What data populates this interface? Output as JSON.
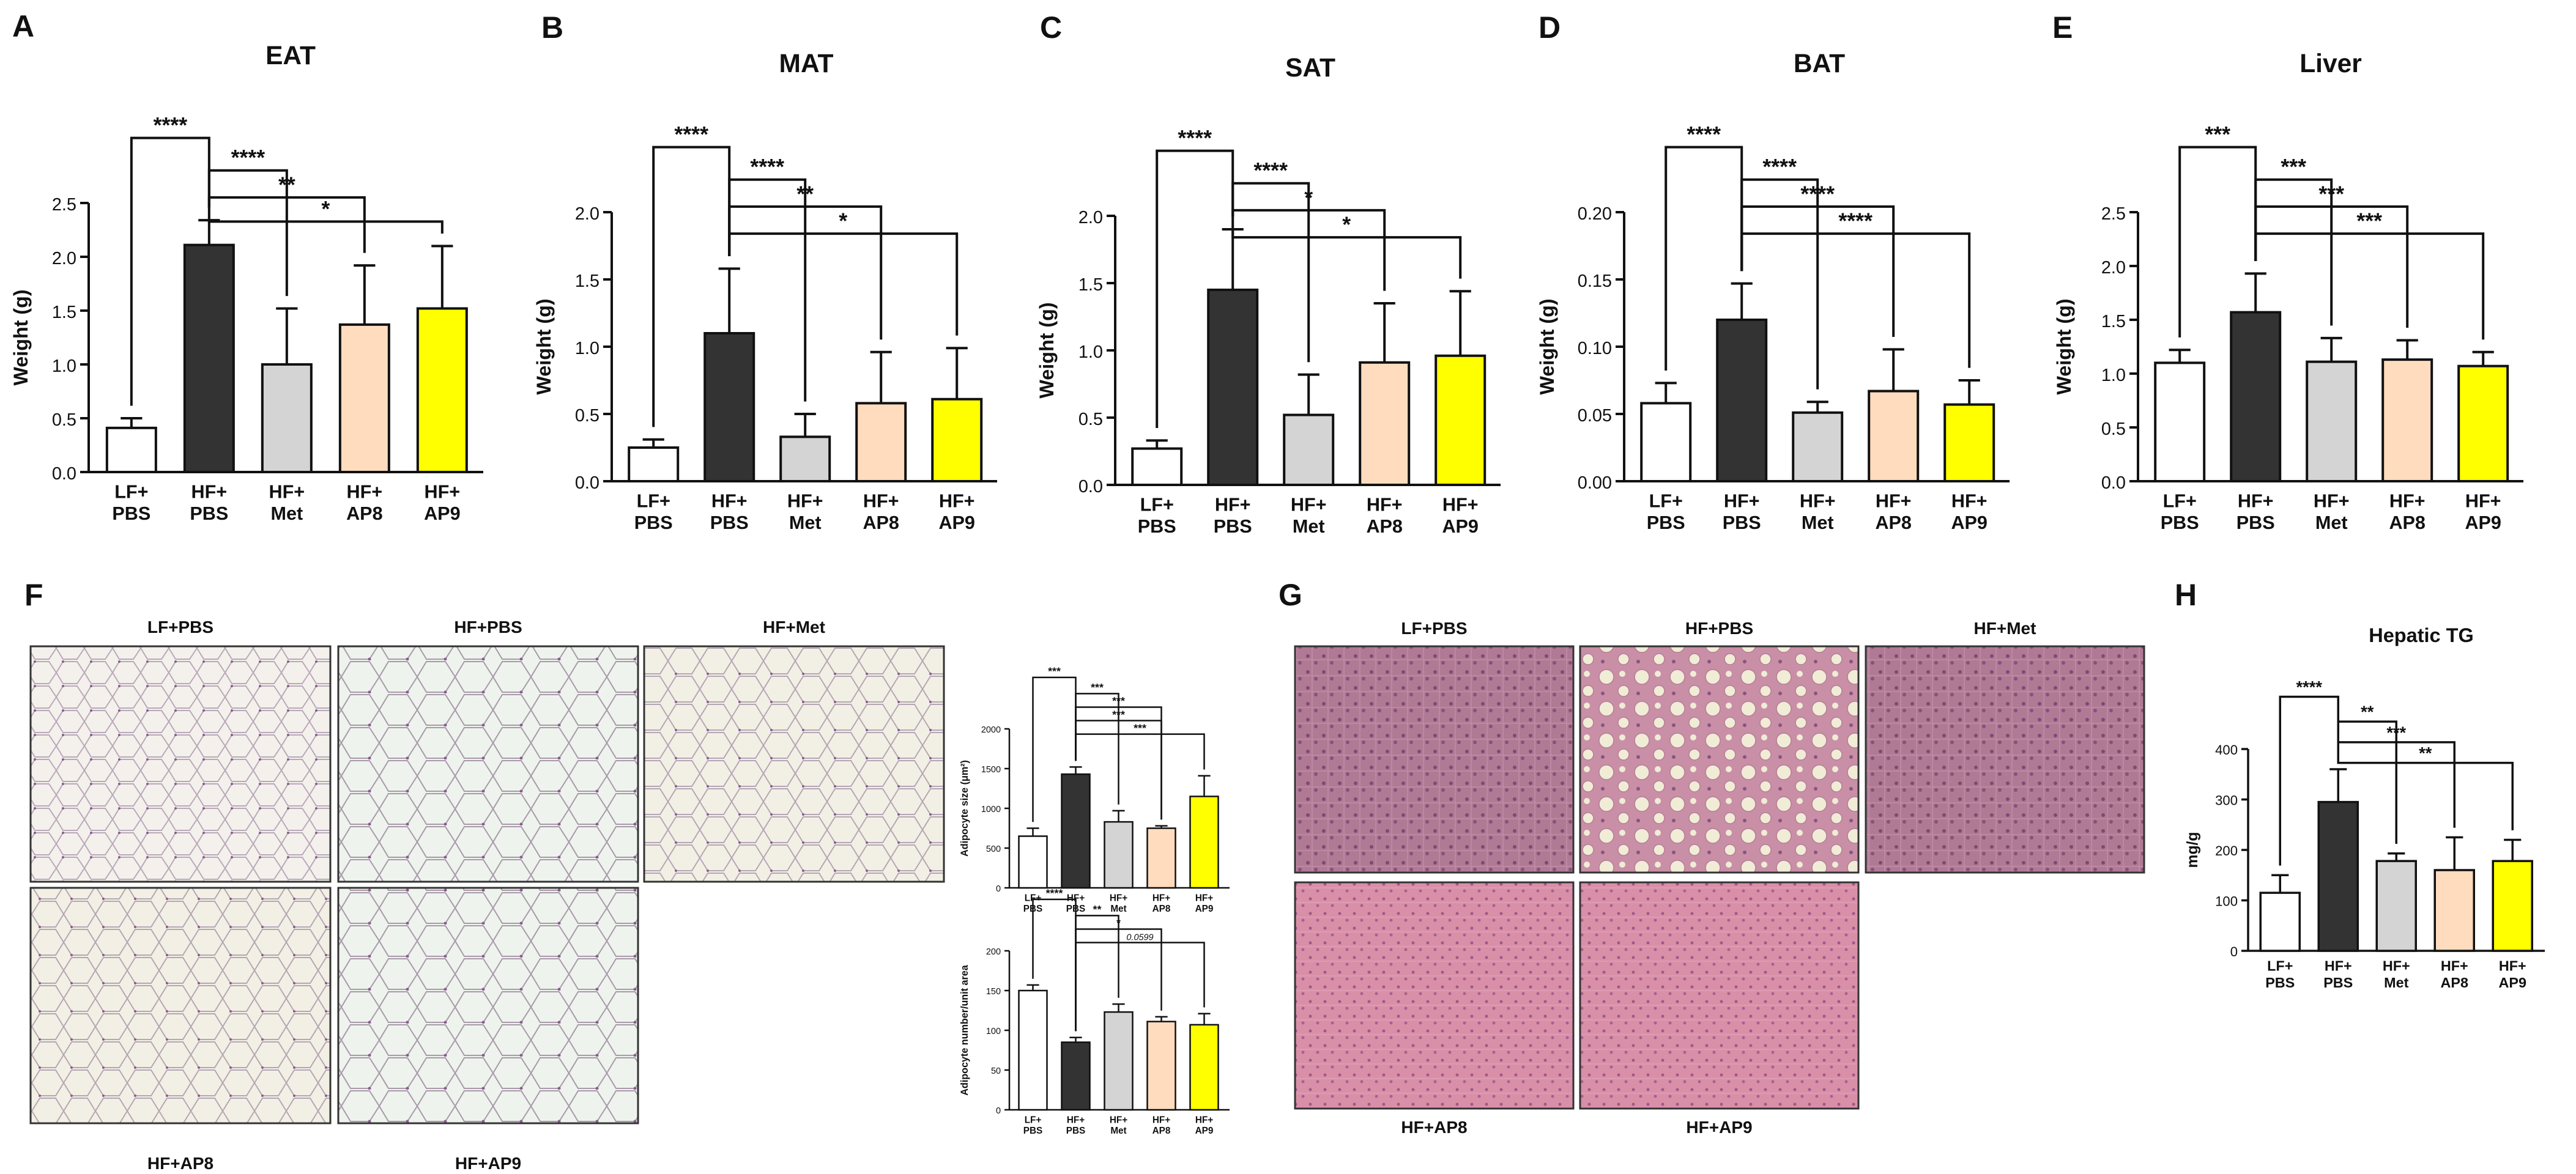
{
  "colors": {
    "lf_pbs": "#ffffff",
    "hf_pbs": "#333333",
    "hf_met": "#d4d4d4",
    "hf_ap8": "#ffdcbe",
    "hf_ap9": "#ffff00",
    "axis": "#111111"
  },
  "groups": [
    "LF+ PBS",
    "HF+ PBS",
    "HF+ Met",
    "HF+ AP8",
    "HF+ AP9"
  ],
  "chart_data": [
    {
      "panel": "A",
      "type": "bar",
      "title": "EAT",
      "ylabel": "Weight (g)",
      "ylim": [
        0,
        2.5
      ],
      "yticks": [
        "0.0",
        "0.5",
        "1.0",
        "1.5",
        "2.0",
        "2.5"
      ],
      "categories": [
        "LF+ PBS",
        "HF+ PBS",
        "HF+ Met",
        "HF+ AP8",
        "HF+ AP9"
      ],
      "values": [
        0.41,
        2.11,
        1.0,
        1.37,
        1.52
      ],
      "errors": [
        0.09,
        0.23,
        0.52,
        0.55,
        0.58
      ],
      "significance": [
        {
          "from": 0,
          "to": 1,
          "label": "****"
        },
        {
          "from": 1,
          "to": 2,
          "label": "****"
        },
        {
          "from": 1,
          "to": 3,
          "label": "**"
        },
        {
          "from": 1,
          "to": 4,
          "label": "*"
        }
      ]
    },
    {
      "panel": "B",
      "type": "bar",
      "title": "MAT",
      "ylabel": "Weight (g)",
      "ylim": [
        0,
        2.0
      ],
      "yticks": [
        "0.0",
        "0.5",
        "1.0",
        "1.5",
        "2.0"
      ],
      "categories": [
        "LF+ PBS",
        "HF+ PBS",
        "HF+ Met",
        "HF+ AP8",
        "HF+ AP9"
      ],
      "values": [
        0.25,
        1.1,
        0.33,
        0.58,
        0.61
      ],
      "errors": [
        0.06,
        0.48,
        0.17,
        0.38,
        0.38
      ],
      "significance": [
        {
          "from": 0,
          "to": 1,
          "label": "****"
        },
        {
          "from": 1,
          "to": 2,
          "label": "****"
        },
        {
          "from": 1,
          "to": 3,
          "label": "**"
        },
        {
          "from": 1,
          "to": 4,
          "label": "*"
        }
      ]
    },
    {
      "panel": "C",
      "type": "bar",
      "title": "SAT",
      "ylabel": "Weight (g)",
      "ylim": [
        0,
        2.0
      ],
      "yticks": [
        "0.0",
        "0.5",
        "1.0",
        "1.5",
        "2.0"
      ],
      "categories": [
        "LF+ PBS",
        "HF+ PBS",
        "HF+ Met",
        "HF+ AP8",
        "HF+ AP9"
      ],
      "values": [
        0.27,
        1.45,
        0.52,
        0.91,
        0.96
      ],
      "errors": [
        0.06,
        0.45,
        0.3,
        0.44,
        0.48
      ],
      "significance": [
        {
          "from": 0,
          "to": 1,
          "label": "****"
        },
        {
          "from": 1,
          "to": 2,
          "label": "****"
        },
        {
          "from": 1,
          "to": 3,
          "label": "*"
        },
        {
          "from": 1,
          "to": 4,
          "label": "*"
        }
      ]
    },
    {
      "panel": "D",
      "type": "bar",
      "title": "BAT",
      "ylabel": "Weight (g)",
      "ylim": [
        0,
        0.2
      ],
      "yticks": [
        "0.00",
        "0.05",
        "0.10",
        "0.15",
        "0.20"
      ],
      "categories": [
        "LF+ PBS",
        "HF+ PBS",
        "HF+ Met",
        "HF+ AP8",
        "HF+ AP9"
      ],
      "values": [
        0.058,
        0.12,
        0.051,
        0.067,
        0.057
      ],
      "errors": [
        0.015,
        0.027,
        0.008,
        0.031,
        0.018
      ],
      "significance": [
        {
          "from": 0,
          "to": 1,
          "label": "****"
        },
        {
          "from": 1,
          "to": 2,
          "label": "****"
        },
        {
          "from": 1,
          "to": 3,
          "label": "****"
        },
        {
          "from": 1,
          "to": 4,
          "label": "****"
        }
      ]
    },
    {
      "panel": "E",
      "type": "bar",
      "title": "Liver",
      "ylabel": "Weight (g)",
      "ylim": [
        0,
        2.5
      ],
      "yticks": [
        "0.0",
        "0.5",
        "1.0",
        "1.5",
        "2.0",
        "2.5"
      ],
      "categories": [
        "LF+ PBS",
        "HF+ PBS",
        "HF+ Met",
        "HF+ AP8",
        "HF+ AP9"
      ],
      "values": [
        1.1,
        1.57,
        1.11,
        1.13,
        1.07
      ],
      "errors": [
        0.12,
        0.36,
        0.22,
        0.18,
        0.13
      ],
      "significance": [
        {
          "from": 0,
          "to": 1,
          "label": "***"
        },
        {
          "from": 1,
          "to": 2,
          "label": "***"
        },
        {
          "from": 1,
          "to": 3,
          "label": "***"
        },
        {
          "from": 1,
          "to": 4,
          "label": "***"
        }
      ]
    },
    {
      "panel": "F-size",
      "type": "bar",
      "title": "",
      "ylabel": "Adipocyte size (μm²)",
      "ylim": [
        0,
        2000
      ],
      "yticks": [
        "0",
        "500",
        "1000",
        "1500",
        "2000"
      ],
      "categories": [
        "LF+ PBS",
        "HF+ PBS",
        "HF+ Met",
        "HF+ AP8",
        "HF+ AP9"
      ],
      "values": [
        650,
        1430,
        830,
        750,
        1150
      ],
      "errors": [
        100,
        90,
        140,
        30,
        260
      ],
      "significance": [
        {
          "from": 0,
          "to": 1,
          "label": "***"
        },
        {
          "from": 1,
          "to": 2,
          "label": "***"
        },
        {
          "from": 1,
          "to": 3,
          "label": "***"
        },
        {
          "from": 1,
          "to": 3,
          "label": "***",
          "level": 3
        },
        {
          "from": 1,
          "to": 4,
          "label": "***"
        }
      ]
    },
    {
      "panel": "F-number",
      "type": "bar",
      "title": "",
      "ylabel": "Adipocyte number/unit area",
      "ylim": [
        0,
        200
      ],
      "yticks": [
        "0",
        "50",
        "100",
        "150",
        "200"
      ],
      "categories": [
        "LF+ PBS",
        "HF+ PBS",
        "HF+ Met",
        "HF+ AP8",
        "HF+ AP9"
      ],
      "values": [
        150,
        85,
        123,
        111,
        107
      ],
      "errors": [
        7,
        6,
        10,
        6,
        14
      ],
      "significance": [
        {
          "from": 0,
          "to": 1,
          "label": "****"
        },
        {
          "from": 1,
          "to": 2,
          "label": "**"
        },
        {
          "from": 1,
          "to": 3,
          "label": "*"
        },
        {
          "from": 1,
          "to": 4,
          "label": "0.0599"
        }
      ]
    },
    {
      "panel": "H",
      "type": "bar",
      "title": "Hepatic TG",
      "ylabel": "mg/g",
      "ylim": [
        0,
        400
      ],
      "yticks": [
        "0",
        "100",
        "200",
        "300",
        "400"
      ],
      "categories": [
        "LF+ PBS",
        "HF+ PBS",
        "HF+ Met",
        "HF+ AP8",
        "HF+ AP9"
      ],
      "values": [
        115,
        295,
        178,
        160,
        178
      ],
      "errors": [
        35,
        65,
        15,
        65,
        42
      ],
      "significance": [
        {
          "from": 0,
          "to": 1,
          "label": "****"
        },
        {
          "from": 1,
          "to": 2,
          "label": "**"
        },
        {
          "from": 1,
          "to": 3,
          "label": "***"
        },
        {
          "from": 1,
          "to": 4,
          "label": "**"
        }
      ]
    }
  ],
  "panel_letters": {
    "A": "A",
    "B": "B",
    "C": "C",
    "D": "D",
    "E": "E",
    "F": "F",
    "G": "G",
    "H": "H"
  },
  "histology": {
    "F": [
      "LF+PBS",
      "HF+PBS",
      "HF+Met",
      "HF+AP8",
      "HF+AP9"
    ],
    "G": [
      "LF+PBS",
      "HF+PBS",
      "HF+Met",
      "HF+AP8",
      "HF+AP9"
    ]
  }
}
